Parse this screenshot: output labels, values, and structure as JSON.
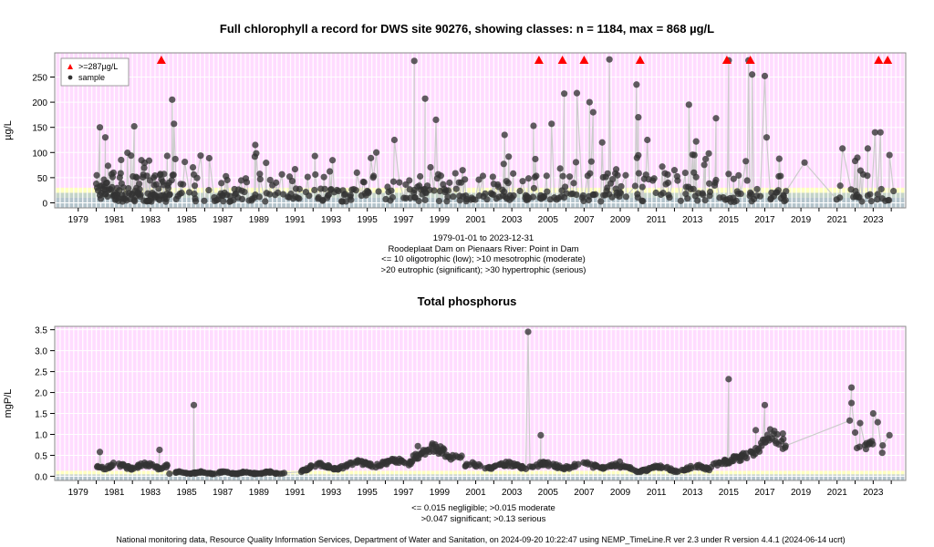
{
  "top_title": "Full chlorophyll a record for DWS site 90276, showing classes: n = 1184, max = 868 µg/L",
  "top_caption": [
    "1979-01-01 to 2023-12-31",
    "Roodeplaat Dam on Pienaars River: Point in Dam",
    "<= 10 oligotrophic (low); >10 mesotrophic (moderate)",
    ">20 eutrophic (significant); >30 hypertrophic (serious)"
  ],
  "bottom_title": "Total phosphorus",
  "bottom_caption": [
    "<= 0.015 negligible; >0.015 moderate",
    ">0.047 significant; >0.13 serious"
  ],
  "footer": "National monitoring data, Resource Quality Information Services, Department of Water and Sanitation, on 2024-09-20 10:22:47 using NEMP_TimeLine.R ver 2.3 under R version 4.4.1 (2024-06-14 ucrt)",
  "legend": {
    "above_label": ">=287µg/L",
    "sample_label": "sample"
  },
  "colors": {
    "background": "#ffdcff",
    "band_low": "#b4c4cc",
    "band_moderate": "#c4d4c8",
    "band_significant": "#ffffc0",
    "point": "#333333",
    "line": "#cccccc",
    "marker_above": "#ff0000"
  },
  "chart_data": [
    {
      "type": "scatter",
      "title": "Full chlorophyll a record for DWS site 90276, showing classes: n = 1184, max = 868 µg/L",
      "ylabel": "µg/L",
      "xlim": [
        1977.7,
        2024.8
      ],
      "ylim": [
        -10,
        298
      ],
      "yticks": [
        0,
        50,
        100,
        150,
        200,
        250
      ],
      "xticks": [
        1979,
        1981,
        1983,
        1985,
        1987,
        1989,
        1991,
        1993,
        1995,
        1997,
        1999,
        2001,
        2003,
        2005,
        2007,
        2009,
        2011,
        2013,
        2015,
        2017,
        2019,
        2021,
        2023
      ],
      "class_bands": [
        {
          "name": "oligotrophic",
          "from": -10,
          "to": 10
        },
        {
          "name": "mesotrophic",
          "from": 10,
          "to": 20
        },
        {
          "name": "eutrophic",
          "from": 20,
          "to": 30
        }
      ],
      "above_threshold": 287,
      "above_markers_x": [
        1983.6,
        2004.5,
        2005.8,
        2007.0,
        2010.1,
        2014.9,
        2016.2,
        2023.3,
        2023.8
      ],
      "legend_position": "top-left",
      "highlight_points": [
        {
          "x": 1980.2,
          "y": 150
        },
        {
          "x": 1980.5,
          "y": 130
        },
        {
          "x": 1982.1,
          "y": 152
        },
        {
          "x": 1984.2,
          "y": 205
        },
        {
          "x": 1984.3,
          "y": 157
        },
        {
          "x": 1988.8,
          "y": 115
        },
        {
          "x": 1992.1,
          "y": 93
        },
        {
          "x": 1995.5,
          "y": 100
        },
        {
          "x": 1996.5,
          "y": 125
        },
        {
          "x": 1997.6,
          "y": 282
        },
        {
          "x": 1998.2,
          "y": 207
        },
        {
          "x": 1998.8,
          "y": 165
        },
        {
          "x": 2002.6,
          "y": 135
        },
        {
          "x": 2004.2,
          "y": 153
        },
        {
          "x": 2005.2,
          "y": 157
        },
        {
          "x": 2005.9,
          "y": 217
        },
        {
          "x": 2006.6,
          "y": 218
        },
        {
          "x": 2007.3,
          "y": 200
        },
        {
          "x": 2007.5,
          "y": 180
        },
        {
          "x": 2008.0,
          "y": 120
        },
        {
          "x": 2008.4,
          "y": 285
        },
        {
          "x": 2009.9,
          "y": 235
        },
        {
          "x": 2010.0,
          "y": 170
        },
        {
          "x": 2010.5,
          "y": 125
        },
        {
          "x": 2012.8,
          "y": 195
        },
        {
          "x": 2013.2,
          "y": 122
        },
        {
          "x": 2014.3,
          "y": 168
        },
        {
          "x": 2015.0,
          "y": 283
        },
        {
          "x": 2016.1,
          "y": 283
        },
        {
          "x": 2016.3,
          "y": 255
        },
        {
          "x": 2017.0,
          "y": 252
        },
        {
          "x": 2017.1,
          "y": 130
        },
        {
          "x": 2019.2,
          "y": 80
        },
        {
          "x": 2021.3,
          "y": 108
        },
        {
          "x": 2022.7,
          "y": 108
        },
        {
          "x": 2023.1,
          "y": 140
        },
        {
          "x": 2023.4,
          "y": 140
        },
        {
          "x": 2023.9,
          "y": 95
        }
      ]
    },
    {
      "type": "scatter",
      "title": "Total phosphorus",
      "ylabel": "mgP/L",
      "xlim": [
        1977.7,
        2024.8
      ],
      "ylim": [
        -0.1,
        3.58
      ],
      "yticks": [
        0.0,
        0.5,
        1.0,
        1.5,
        2.0,
        2.5,
        3.0,
        3.5
      ],
      "xticks": [
        1979,
        1981,
        1983,
        1985,
        1987,
        1989,
        1991,
        1993,
        1995,
        1997,
        1999,
        2001,
        2003,
        2005,
        2007,
        2009,
        2011,
        2013,
        2015,
        2017,
        2019,
        2021,
        2023
      ],
      "class_bands": [
        {
          "name": "negligible",
          "from": -0.1,
          "to": 0.015
        },
        {
          "name": "moderate",
          "from": 0.015,
          "to": 0.047
        },
        {
          "name": "significant",
          "from": 0.047,
          "to": 0.13
        }
      ],
      "highlight_points": [
        {
          "x": 1980.2,
          "y": 0.58
        },
        {
          "x": 1983.5,
          "y": 0.63
        },
        {
          "x": 1985.4,
          "y": 1.7
        },
        {
          "x": 1997.8,
          "y": 0.72
        },
        {
          "x": 1998.6,
          "y": 0.78
        },
        {
          "x": 2003.9,
          "y": 3.45
        },
        {
          "x": 2004.6,
          "y": 0.98
        },
        {
          "x": 2015.0,
          "y": 2.32
        },
        {
          "x": 2016.5,
          "y": 1.1
        },
        {
          "x": 2017.0,
          "y": 1.7
        },
        {
          "x": 2017.3,
          "y": 1.12
        },
        {
          "x": 2018.0,
          "y": 1.02
        },
        {
          "x": 2021.8,
          "y": 2.12
        },
        {
          "x": 2021.8,
          "y": 1.75
        },
        {
          "x": 2021.7,
          "y": 1.33
        },
        {
          "x": 2022.6,
          "y": 0.65
        },
        {
          "x": 2023.0,
          "y": 1.5
        },
        {
          "x": 2023.5,
          "y": 0.56
        },
        {
          "x": 2023.9,
          "y": 0.98
        }
      ]
    }
  ]
}
